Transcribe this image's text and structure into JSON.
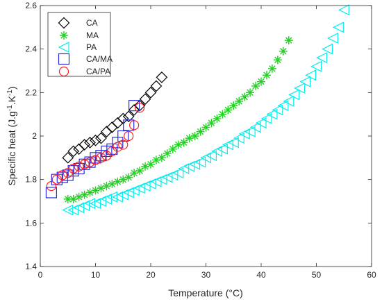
{
  "chart_data": {
    "type": "scatter",
    "xlabel": "Temperature (°C)",
    "ylabel": {
      "t1": "Specific heat (J.g",
      "s1": "-1",
      "t2": ".K",
      "s2": "-1",
      "t3": ")"
    },
    "xlim": [
      0,
      60
    ],
    "ylim": [
      1.4,
      2.6
    ],
    "xticks": [
      0,
      10,
      20,
      30,
      40,
      50,
      60
    ],
    "yticks": [
      1.4,
      1.6,
      1.8,
      2.0,
      2.2,
      2.4,
      2.6
    ],
    "xtick_labels": [
      "0",
      "10",
      "20",
      "30",
      "40",
      "50",
      "60"
    ],
    "ytick_labels": [
      "1.4",
      "1.6",
      "1.8",
      "2",
      "2.2",
      "2.4",
      "2.6"
    ],
    "grid": false,
    "legend_position": "top-left",
    "series": [
      {
        "name": "CA",
        "marker": "diamond",
        "color": "#000000",
        "points": [
          [
            5,
            1.9
          ],
          [
            6,
            1.93
          ],
          [
            7,
            1.94
          ],
          [
            8,
            1.96
          ],
          [
            9,
            1.97
          ],
          [
            10,
            1.98
          ],
          [
            11,
            1.99
          ],
          [
            12,
            2.02
          ],
          [
            13,
            2.04
          ],
          [
            14,
            2.06
          ],
          [
            15,
            2.08
          ],
          [
            16,
            2.09
          ],
          [
            17,
            2.12
          ],
          [
            18,
            2.14
          ],
          [
            19,
            2.17
          ],
          [
            20,
            2.2
          ],
          [
            21,
            2.23
          ],
          [
            22,
            2.27
          ]
        ]
      },
      {
        "name": "MA",
        "marker": "asterisk",
        "color": "#21d321",
        "points": [
          [
            5,
            1.71
          ],
          [
            6,
            1.71
          ],
          [
            7,
            1.72
          ],
          [
            8,
            1.73
          ],
          [
            9,
            1.74
          ],
          [
            10,
            1.75
          ],
          [
            11,
            1.76
          ],
          [
            12,
            1.77
          ],
          [
            13,
            1.78
          ],
          [
            14,
            1.79
          ],
          [
            15,
            1.8
          ],
          [
            16,
            1.81
          ],
          [
            17,
            1.83
          ],
          [
            18,
            1.84
          ],
          [
            19,
            1.86
          ],
          [
            20,
            1.87
          ],
          [
            21,
            1.89
          ],
          [
            22,
            1.9
          ],
          [
            23,
            1.92
          ],
          [
            24,
            1.94
          ],
          [
            25,
            1.96
          ],
          [
            26,
            1.97
          ],
          [
            27,
            1.99
          ],
          [
            28,
            2.0
          ],
          [
            29,
            2.02
          ],
          [
            30,
            2.04
          ],
          [
            31,
            2.06
          ],
          [
            32,
            2.08
          ],
          [
            33,
            2.1
          ],
          [
            34,
            2.12
          ],
          [
            35,
            2.14
          ],
          [
            36,
            2.16
          ],
          [
            37,
            2.18
          ],
          [
            38,
            2.2
          ],
          [
            39,
            2.23
          ],
          [
            40,
            2.25
          ],
          [
            41,
            2.28
          ],
          [
            42,
            2.31
          ],
          [
            43,
            2.35
          ],
          [
            44,
            2.39
          ],
          [
            45,
            2.44
          ]
        ]
      },
      {
        "name": "PA",
        "marker": "triangle-left",
        "color": "#00eeee",
        "points": [
          [
            5,
            1.66
          ],
          [
            6,
            1.66
          ],
          [
            7,
            1.67
          ],
          [
            8,
            1.68
          ],
          [
            9,
            1.69
          ],
          [
            10,
            1.69
          ],
          [
            11,
            1.7
          ],
          [
            12,
            1.71
          ],
          [
            13,
            1.72
          ],
          [
            14,
            1.72
          ],
          [
            15,
            1.73
          ],
          [
            16,
            1.74
          ],
          [
            17,
            1.75
          ],
          [
            18,
            1.76
          ],
          [
            19,
            1.77
          ],
          [
            20,
            1.78
          ],
          [
            21,
            1.79
          ],
          [
            22,
            1.8
          ],
          [
            23,
            1.81
          ],
          [
            24,
            1.82
          ],
          [
            25,
            1.83
          ],
          [
            26,
            1.85
          ],
          [
            27,
            1.86
          ],
          [
            28,
            1.87
          ],
          [
            29,
            1.88
          ],
          [
            30,
            1.9
          ],
          [
            31,
            1.91
          ],
          [
            32,
            1.93
          ],
          [
            33,
            1.94
          ],
          [
            34,
            1.96
          ],
          [
            35,
            1.97
          ],
          [
            36,
            1.99
          ],
          [
            37,
            2.01
          ],
          [
            38,
            2.02
          ],
          [
            39,
            2.04
          ],
          [
            40,
            2.06
          ],
          [
            41,
            2.08
          ],
          [
            42,
            2.1
          ],
          [
            43,
            2.12
          ],
          [
            44,
            2.14
          ],
          [
            45,
            2.16
          ],
          [
            46,
            2.19
          ],
          [
            47,
            2.22
          ],
          [
            48,
            2.25
          ],
          [
            49,
            2.28
          ],
          [
            50,
            2.32
          ],
          [
            51,
            2.36
          ],
          [
            52,
            2.4
          ],
          [
            53,
            2.45
          ],
          [
            54,
            2.5
          ],
          [
            55,
            2.58
          ]
        ]
      },
      {
        "name": "CA/MA",
        "marker": "square",
        "color": "#2a2ae8",
        "points": [
          [
            2,
            1.74
          ],
          [
            3,
            1.8
          ],
          [
            4,
            1.81
          ],
          [
            5,
            1.82
          ],
          [
            6,
            1.84
          ],
          [
            7,
            1.85
          ],
          [
            8,
            1.87
          ],
          [
            9,
            1.88
          ],
          [
            10,
            1.9
          ],
          [
            11,
            1.91
          ],
          [
            12,
            1.93
          ],
          [
            13,
            1.94
          ],
          [
            14,
            1.97
          ],
          [
            15,
            2.0
          ],
          [
            16,
            2.05
          ],
          [
            17,
            2.14
          ]
        ]
      },
      {
        "name": "CA/PA",
        "marker": "circle",
        "color": "#ff2020",
        "points": [
          [
            2,
            1.77
          ],
          [
            3,
            1.8
          ],
          [
            4,
            1.82
          ],
          [
            5,
            1.83
          ],
          [
            6,
            1.85
          ],
          [
            7,
            1.86
          ],
          [
            8,
            1.87
          ],
          [
            9,
            1.88
          ],
          [
            10,
            1.89
          ],
          [
            11,
            1.9
          ],
          [
            12,
            1.91
          ],
          [
            13,
            1.93
          ],
          [
            14,
            1.95
          ],
          [
            15,
            1.96
          ],
          [
            16,
            2.0
          ],
          [
            17,
            2.05
          ],
          [
            18,
            2.13
          ]
        ]
      }
    ]
  }
}
